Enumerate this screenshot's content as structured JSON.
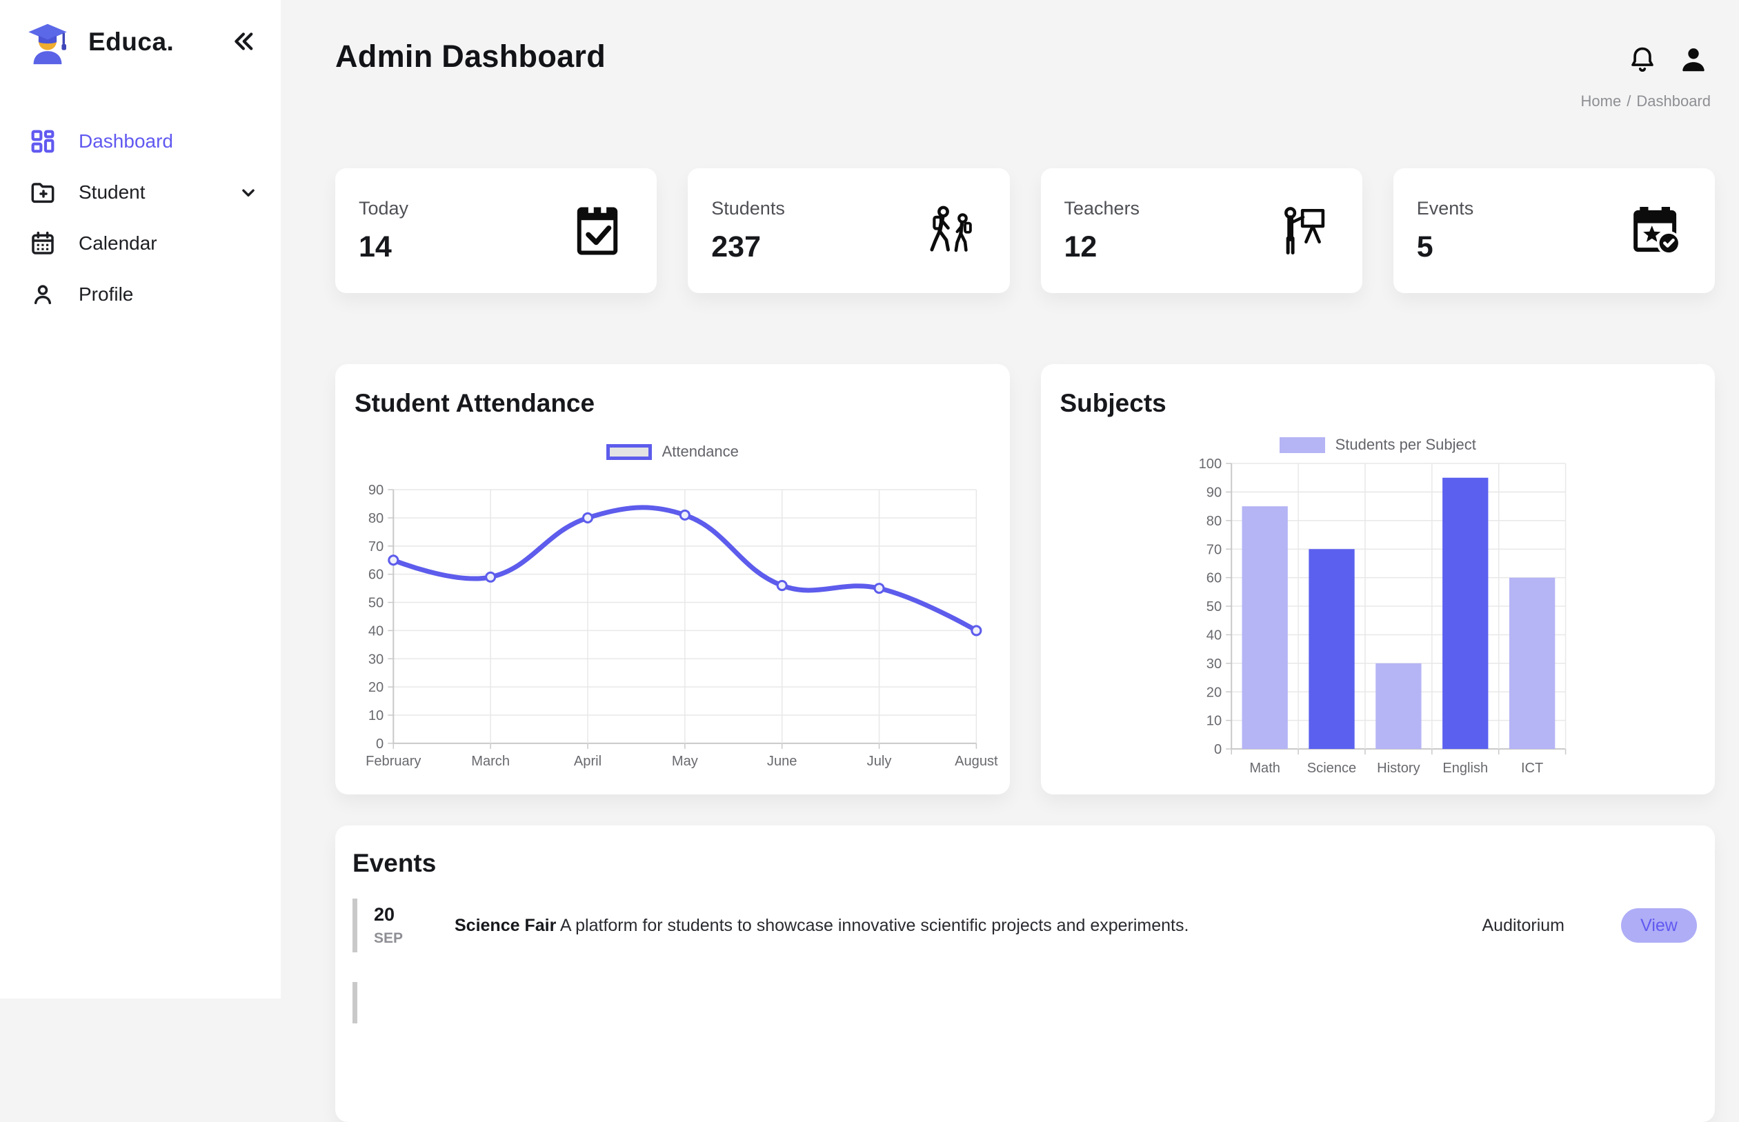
{
  "app": {
    "name": "Educa.",
    "logo_icon": "graduate-student-icon",
    "collapse_icon": "chevrons-left-icon"
  },
  "sidebar": {
    "items": [
      {
        "label": "Dashboard",
        "icon": "dashboard-grid-icon",
        "active": true
      },
      {
        "label": "Student",
        "icon": "folder-plus-icon",
        "has_submenu": true
      },
      {
        "label": "Calendar",
        "icon": "calendar-icon"
      },
      {
        "label": "Profile",
        "icon": "person-icon"
      }
    ]
  },
  "header": {
    "title": "Admin Dashboard",
    "icons": [
      "bell-icon",
      "user-icon"
    ],
    "breadcrumb": [
      "Home",
      "Dashboard"
    ],
    "breadcrumb_separator": "/"
  },
  "stats": [
    {
      "label": "Today",
      "value": "14",
      "icon": "calendar-check-icon"
    },
    {
      "label": "Students",
      "value": "237",
      "icon": "students-walking-icon"
    },
    {
      "label": "Teachers",
      "value": "12",
      "icon": "teacher-presenting-icon"
    },
    {
      "label": "Events",
      "value": "5",
      "icon": "calendar-star-icon"
    }
  ],
  "chart_data": [
    {
      "type": "line",
      "title": "Student Attendance",
      "legend": [
        "Attendance"
      ],
      "legend_position": "top-center",
      "categories": [
        "February",
        "March",
        "April",
        "May",
        "June",
        "July",
        "August"
      ],
      "values": [
        65,
        59,
        80,
        81,
        56,
        55,
        40
      ],
      "ylim": [
        0,
        90
      ],
      "ytick_step": 10,
      "grid": true,
      "curve": "smooth",
      "line_color": "#5d5cec",
      "point_fill": "#efeffb",
      "legend_box_fill": "#e4e4e4"
    },
    {
      "type": "bar",
      "title": "Subjects",
      "legend": [
        "Students per Subject"
      ],
      "legend_position": "top-center",
      "categories": [
        "Math",
        "Science",
        "History",
        "English",
        "ICT"
      ],
      "values": [
        85,
        70,
        30,
        95,
        60
      ],
      "ylim": [
        0,
        100
      ],
      "ytick_step": 10,
      "grid": true,
      "bar_colors": [
        "#b5b4f5",
        "#5b60ef",
        "#b5b4f5",
        "#5b60ef",
        "#b5b4f5"
      ]
    }
  ],
  "events": {
    "title": "Events",
    "items": [
      {
        "day": "20",
        "month": "SEP",
        "name": "Science Fair",
        "description": "A platform for students to showcase innovative scientific projects and experiments.",
        "location": "Auditorium",
        "action_label": "View"
      }
    ]
  },
  "colors": {
    "accent": "#6159f0",
    "line": "#5d5cec",
    "bar_light": "#b5b4f5",
    "bar_dark": "#5b60ef",
    "grid": "#e8e8e8",
    "axis": "#c9c9c9",
    "page_bg": "#f4f4f4",
    "card_bg": "#ffffff",
    "view_btn_bg": "#aeadf6",
    "view_btn_text": "#6159f0",
    "breadcrumb_gray": "#8e8f94",
    "event_bar_gray": "#c9c9c9"
  }
}
